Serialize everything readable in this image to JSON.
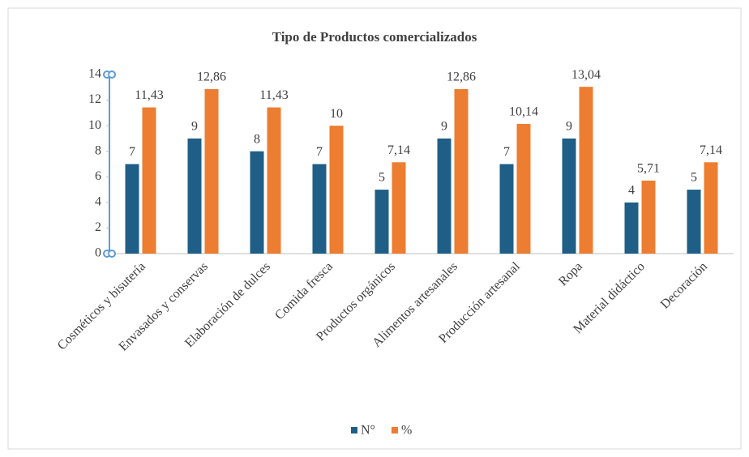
{
  "chart_data": {
    "type": "bar",
    "title": "Tipo de Productos comercializados",
    "categories": [
      "Cosméticos y bisutería",
      "Envasados y conservas",
      "Elaboración de dulces",
      "Comida fresca",
      "Productos orgánicos",
      "Alimentos artesanales",
      "Producción artesanal",
      "Ropa",
      "Material didáctico",
      "Decoración"
    ],
    "series": [
      {
        "name": "N°",
        "color": "#1f5f87",
        "values": [
          7,
          9,
          8,
          7,
          5,
          9,
          7,
          9,
          4,
          5
        ]
      },
      {
        "name": "%",
        "color": "#ed7d31",
        "values": [
          11.43,
          12.86,
          11.43,
          10,
          7.14,
          12.86,
          10.14,
          13.04,
          5.71,
          7.14
        ],
        "value_labels": [
          "11,43",
          "12,86",
          "11,43",
          "10",
          "7,14",
          "12,86",
          "10,14",
          "13,04",
          "5,71",
          "7,14"
        ]
      }
    ],
    "ylim": [
      0,
      14
    ],
    "yticks": [
      0,
      2,
      4,
      6,
      8,
      10,
      12,
      14
    ],
    "grid": false,
    "legend": "bottom"
  }
}
